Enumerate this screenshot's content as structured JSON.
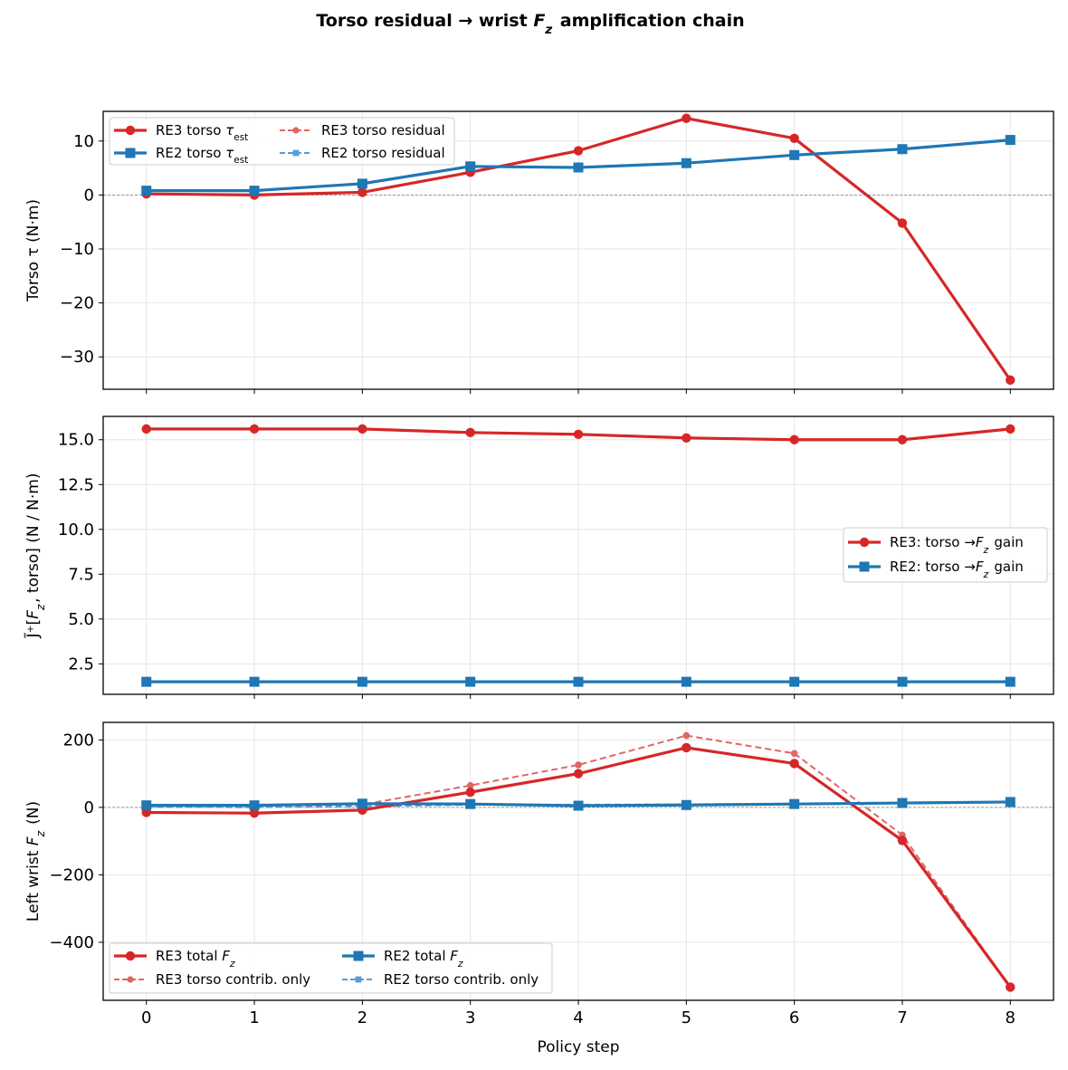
{
  "figure": {
    "title": "Torso residual → wrist F_z amplification chain",
    "xlabel": "Policy step"
  },
  "colors": {
    "re3": "#d62728",
    "re2": "#1f77b4",
    "re3_light": "#e06666",
    "re2_light": "#5b9bd5"
  },
  "chart_data": [
    {
      "type": "line",
      "ylabel": "Torso τ (N·m)",
      "x": [
        0,
        1,
        2,
        3,
        4,
        5,
        6,
        7,
        8
      ],
      "xticks": [
        "0",
        "1",
        "2",
        "3",
        "4",
        "5",
        "6",
        "7",
        "8"
      ],
      "yticks": [
        "10",
        "0",
        "−10",
        "−20",
        "−30"
      ],
      "ylim": [
        -36,
        15.5
      ],
      "zero_line": true,
      "grid": true,
      "legend_position": "upper left",
      "series": [
        {
          "name": "RE3 torso τ_est",
          "color": "#d62728",
          "style": "solid",
          "marker": "circle",
          "values": [
            0.2,
            0.0,
            0.5,
            4.2,
            8.2,
            14.2,
            10.5,
            -5.2,
            -34.3
          ]
        },
        {
          "name": "RE2 torso τ_est",
          "color": "#1f77b4",
          "style": "solid",
          "marker": "square",
          "values": [
            0.8,
            0.8,
            2.1,
            5.3,
            5.1,
            5.9,
            7.4,
            8.5,
            10.2
          ]
        },
        {
          "name": "RE3 torso residual",
          "color": "#e06666",
          "style": "dashed",
          "marker": "circle",
          "values": [
            0.2,
            0.0,
            0.5,
            4.2,
            8.2,
            14.2,
            10.5,
            -5.2,
            -34.3
          ]
        },
        {
          "name": "RE2 torso residual",
          "color": "#5b9bd5",
          "style": "dashed",
          "marker": "square",
          "values": [
            0.8,
            0.8,
            2.1,
            5.3,
            5.1,
            5.9,
            7.4,
            8.5,
            10.2
          ]
        }
      ]
    },
    {
      "type": "line",
      "ylabel": "J̃⁺[F_z, torso] (N / N·m)",
      "x": [
        0,
        1,
        2,
        3,
        4,
        5,
        6,
        7,
        8
      ],
      "xticks": [
        "0",
        "1",
        "2",
        "3",
        "4",
        "5",
        "6",
        "7",
        "8"
      ],
      "yticks": [
        "15.0",
        "12.5",
        "10.0",
        "7.5",
        "5.0",
        "2.5"
      ],
      "ylim": [
        0.8,
        16.3
      ],
      "zero_line": false,
      "grid": true,
      "legend_position": "center right",
      "series": [
        {
          "name": "RE3: torso →F_z gain",
          "color": "#d62728",
          "style": "solid",
          "marker": "circle",
          "values": [
            15.6,
            15.6,
            15.6,
            15.4,
            15.3,
            15.1,
            15.0,
            15.0,
            15.6
          ]
        },
        {
          "name": "RE2: torso →F_z gain",
          "color": "#1f77b4",
          "style": "solid",
          "marker": "square",
          "values": [
            1.5,
            1.5,
            1.5,
            1.5,
            1.5,
            1.5,
            1.5,
            1.5,
            1.5
          ]
        }
      ]
    },
    {
      "type": "line",
      "ylabel": "Left wrist F_z (N)",
      "x": [
        0,
        1,
        2,
        3,
        4,
        5,
        6,
        7,
        8
      ],
      "xticks": [
        "0",
        "1",
        "2",
        "3",
        "4",
        "5",
        "6",
        "7",
        "8"
      ],
      "yticks": [
        "200",
        "0",
        "−200",
        "−400"
      ],
      "ylim": [
        -572,
        252
      ],
      "zero_line": true,
      "grid": true,
      "legend_position": "lower left",
      "series": [
        {
          "name": "RE3 total F_z",
          "color": "#d62728",
          "style": "solid",
          "marker": "circle",
          "values": [
            -15,
            -17,
            -8,
            45,
            100,
            177,
            130,
            -98,
            -533
          ]
        },
        {
          "name": "RE3 torso contrib. only",
          "color": "#e06666",
          "style": "dashed",
          "marker": "circle",
          "values": [
            3,
            0,
            8,
            65,
            126,
            213,
            160,
            -82,
            -533
          ]
        },
        {
          "name": "RE2 total F_z",
          "color": "#1f77b4",
          "style": "solid",
          "marker": "square",
          "values": [
            6,
            6,
            11,
            10,
            5,
            7,
            10,
            13,
            16
          ]
        },
        {
          "name": "RE2 torso contrib. only",
          "color": "#5b9bd5",
          "style": "dashed",
          "marker": "square",
          "values": [
            1,
            1,
            3,
            8,
            8,
            9,
            11,
            13,
            15
          ]
        }
      ]
    }
  ]
}
